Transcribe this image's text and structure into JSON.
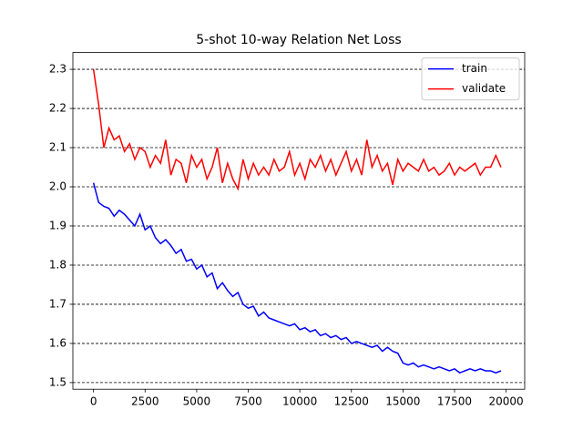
{
  "chart_data": {
    "type": "line",
    "title": "5-shot 10-way Relation Net Loss",
    "x": [
      0,
      250,
      500,
      750,
      1000,
      1250,
      1500,
      1750,
      2000,
      2250,
      2500,
      2750,
      3000,
      3250,
      3500,
      3750,
      4000,
      4250,
      4500,
      4750,
      5000,
      5250,
      5500,
      5750,
      6000,
      6250,
      6500,
      6750,
      7000,
      7250,
      7500,
      7750,
      8000,
      8250,
      8500,
      8750,
      9000,
      9250,
      9500,
      9750,
      10000,
      10250,
      10500,
      10750,
      11000,
      11250,
      11500,
      11750,
      12000,
      12250,
      12500,
      12750,
      13000,
      13250,
      13500,
      13750,
      14000,
      14250,
      14500,
      14750,
      15000,
      15250,
      15500,
      15750,
      16000,
      16250,
      16500,
      16750,
      17000,
      17250,
      17500,
      17750,
      18000,
      18250,
      18500,
      18750,
      19000,
      19250,
      19500,
      19750
    ],
    "series": [
      {
        "name": "train",
        "color": "#0000ff",
        "values": [
          2.01,
          1.96,
          1.95,
          1.945,
          1.925,
          1.94,
          1.93,
          1.915,
          1.9,
          1.93,
          1.89,
          1.9,
          1.87,
          1.855,
          1.865,
          1.85,
          1.83,
          1.84,
          1.81,
          1.815,
          1.79,
          1.8,
          1.77,
          1.78,
          1.74,
          1.755,
          1.735,
          1.72,
          1.73,
          1.7,
          1.69,
          1.695,
          1.67,
          1.68,
          1.665,
          1.66,
          1.655,
          1.65,
          1.645,
          1.65,
          1.635,
          1.64,
          1.63,
          1.635,
          1.62,
          1.625,
          1.615,
          1.62,
          1.61,
          1.615,
          1.6,
          1.605,
          1.6,
          1.595,
          1.59,
          1.595,
          1.58,
          1.59,
          1.58,
          1.575,
          1.55,
          1.545,
          1.55,
          1.54,
          1.545,
          1.54,
          1.535,
          1.54,
          1.535,
          1.53,
          1.535,
          1.525,
          1.53,
          1.535,
          1.53,
          1.535,
          1.53,
          1.53,
          1.525,
          1.53
        ]
      },
      {
        "name": "validate",
        "color": "#ff0000",
        "values": [
          2.3,
          2.21,
          2.1,
          2.15,
          2.12,
          2.13,
          2.09,
          2.11,
          2.07,
          2.1,
          2.09,
          2.05,
          2.08,
          2.06,
          2.12,
          2.03,
          2.07,
          2.06,
          2.01,
          2.08,
          2.05,
          2.07,
          2.02,
          2.05,
          2.1,
          2.01,
          2.06,
          2.02,
          1.995,
          2.07,
          2.02,
          2.06,
          2.03,
          2.05,
          2.03,
          2.07,
          2.04,
          2.05,
          2.09,
          2.03,
          2.06,
          2.02,
          2.07,
          2.05,
          2.08,
          2.04,
          2.07,
          2.03,
          2.06,
          2.09,
          2.04,
          2.07,
          2.03,
          2.12,
          2.05,
          2.08,
          2.04,
          2.06,
          2.005,
          2.07,
          2.04,
          2.06,
          2.05,
          2.04,
          2.07,
          2.04,
          2.05,
          2.03,
          2.04,
          2.06,
          2.03,
          2.05,
          2.04,
          2.05,
          2.06,
          2.03,
          2.05,
          2.05,
          2.08,
          2.05
        ]
      }
    ],
    "xlim": [
      -1000,
      20900
    ],
    "ylim": [
      1.483,
      2.343
    ],
    "xticks": [
      0,
      2500,
      5000,
      7500,
      10000,
      12500,
      15000,
      17500,
      20000
    ],
    "yticks": [
      1.5,
      1.6,
      1.7,
      1.8,
      1.9,
      {
        "value": 2.0,
        "label": "2.0"
      },
      2.1,
      2.2,
      2.3
    ],
    "grid": "y",
    "legend": "upper right"
  }
}
